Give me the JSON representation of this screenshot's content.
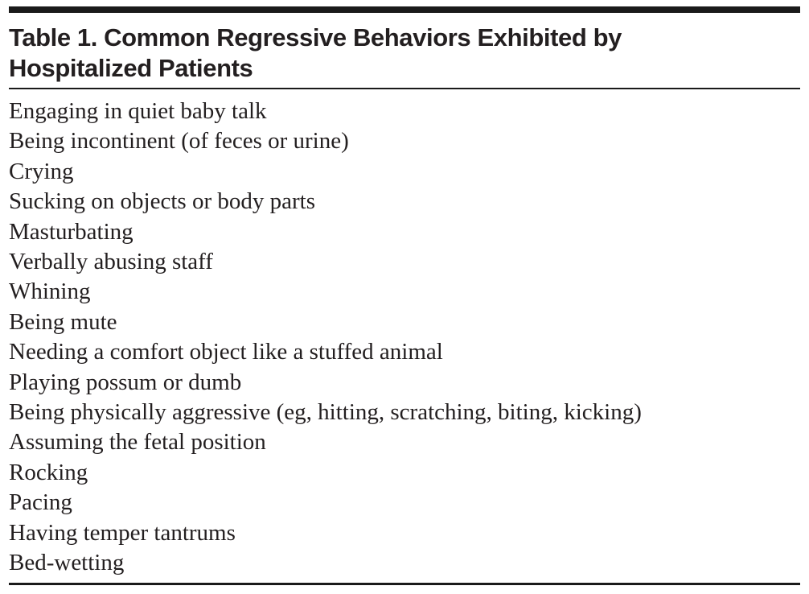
{
  "table": {
    "title": "Table 1. Common Regressive Behaviors Exhibited by Hospitalized Patients",
    "title_lines": [
      "Table 1. Common Regressive Behaviors Exhibited by",
      "Hospitalized Patients"
    ],
    "rows": [
      "Engaging in quiet baby talk",
      "Being incontinent (of feces or urine)",
      "Crying",
      "Sucking on objects or body parts",
      "Masturbating",
      "Verbally abusing staff",
      "Whining",
      "Being mute",
      "Needing a comfort object like a stuffed animal",
      "Playing possum or dumb",
      "Being physically aggressive (eg, hitting, scratching, biting, kicking)",
      "Assuming the fetal position",
      "Rocking",
      "Pacing",
      "Having temper tantrums",
      "Bed-wetting"
    ],
    "colors": {
      "text": "#231f20",
      "rule": "#1a1a1a",
      "background": "#ffffff"
    }
  }
}
